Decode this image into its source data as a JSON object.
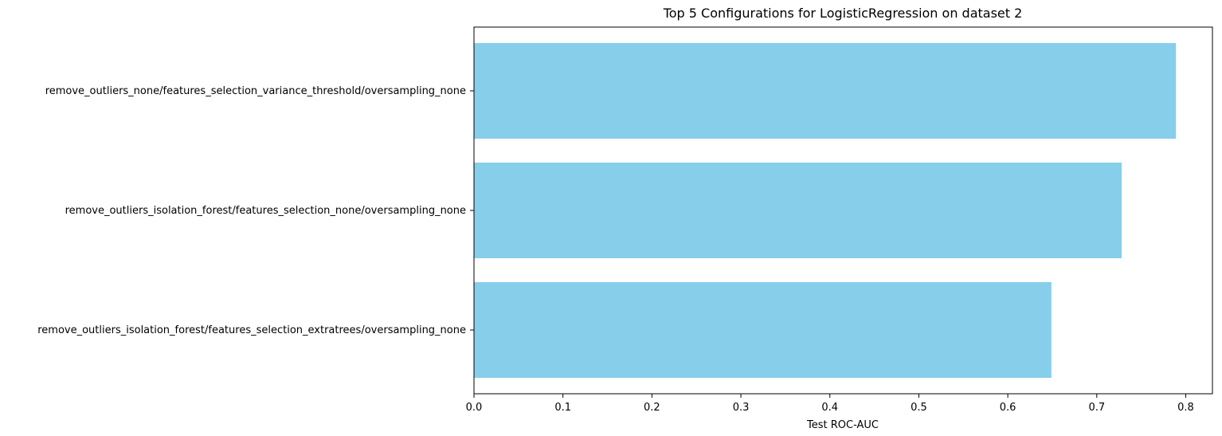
{
  "chart_data": {
    "type": "bar",
    "orientation": "horizontal",
    "title": "Top 5 Configurations for LogisticRegression on dataset 2",
    "xlabel": "Test ROC-AUC",
    "ylabel": "",
    "categories": [
      "remove_outliers_none/features_selection_variance_threshold/oversampling_none",
      "remove_outliers_isolation_forest/features_selection_none/oversampling_none",
      "remove_outliers_isolation_forest/features_selection_extratrees/oversampling_none"
    ],
    "values": [
      0.789,
      0.728,
      0.649
    ],
    "xlim": [
      0,
      0.83
    ],
    "xticks": [
      0.0,
      0.1,
      0.2,
      0.3,
      0.4,
      0.5,
      0.6,
      0.7,
      0.8
    ],
    "xtick_labels": [
      "0.0",
      "0.1",
      "0.2",
      "0.3",
      "0.4",
      "0.5",
      "0.6",
      "0.7",
      "0.8"
    ],
    "bar_color": "#87ceeb",
    "grid": false,
    "legend": false
  }
}
